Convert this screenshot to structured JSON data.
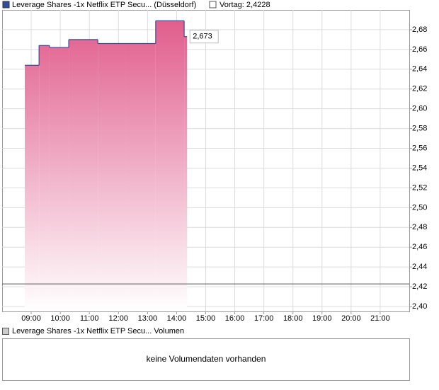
{
  "chart_data": {
    "type": "step-area",
    "legend": "Leverage Shares -1x Netflix ETP Secu... (Düsseldorf)",
    "reference": {
      "label": "Vortag: 2,4228",
      "value": 2.4228,
      "color": "#555555"
    },
    "series": [
      {
        "name": "Leverage Shares -1x Netflix ETP Secu... (Düsseldorf)",
        "color": "#2f4f9f",
        "fill": "#e05a8a",
        "x": [
          8.78,
          9.27,
          9.63,
          10.29,
          11.29,
          12.26,
          13.28,
          14.26,
          14.36
        ],
        "values": [
          2.644,
          2.664,
          2.662,
          2.67,
          2.666,
          2.666,
          2.689,
          2.673,
          2.673
        ]
      }
    ],
    "last_value": {
      "value": 2.673,
      "label": "2,673"
    },
    "xlim": [
      8,
      22
    ],
    "xticks": [
      {
        "value": 9,
        "label": "09:00"
      },
      {
        "value": 10,
        "label": "10:00"
      },
      {
        "value": 11,
        "label": "11:00"
      },
      {
        "value": 12,
        "label": "12:00"
      },
      {
        "value": 13,
        "label": "13:00"
      },
      {
        "value": 14,
        "label": "14:00"
      },
      {
        "value": 15,
        "label": "15:00"
      },
      {
        "value": 16,
        "label": "16:00"
      },
      {
        "value": 17,
        "label": "17:00"
      },
      {
        "value": 18,
        "label": "18:00"
      },
      {
        "value": 19,
        "label": "19:00"
      },
      {
        "value": 20,
        "label": "20:00"
      },
      {
        "value": 21,
        "label": "21:00"
      }
    ],
    "ylim": [
      2.395,
      2.7
    ],
    "yticks": [
      {
        "value": 2.4,
        "label": "2,40"
      },
      {
        "value": 2.42,
        "label": "2,42"
      },
      {
        "value": 2.44,
        "label": "2,44"
      },
      {
        "value": 2.46,
        "label": "2,46"
      },
      {
        "value": 2.48,
        "label": "2,48"
      },
      {
        "value": 2.5,
        "label": "2,50"
      },
      {
        "value": 2.52,
        "label": "2,52"
      },
      {
        "value": 2.54,
        "label": "2,54"
      },
      {
        "value": 2.56,
        "label": "2,56"
      },
      {
        "value": 2.58,
        "label": "2,58"
      },
      {
        "value": 2.6,
        "label": "2,60"
      },
      {
        "value": 2.62,
        "label": "2,62"
      },
      {
        "value": 2.64,
        "label": "2,64"
      },
      {
        "value": 2.66,
        "label": "2,66"
      },
      {
        "value": 2.68,
        "label": "2,68"
      }
    ],
    "grid": true
  },
  "volume_panel": {
    "legend": "Leverage Shares -1x Netflix ETP Secu... Volumen",
    "message": "keine Volumendaten vorhanden"
  }
}
